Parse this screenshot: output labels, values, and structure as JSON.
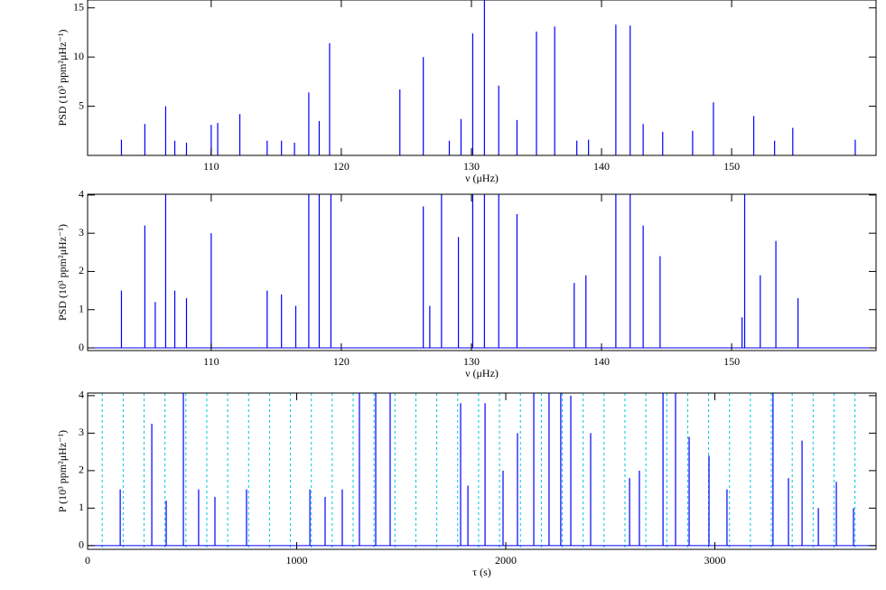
{
  "chart_data": [
    {
      "type": "spectrum",
      "xlabel": "ν (μHz)",
      "ylabel": "PSD (10³ ppm²μHz⁻¹)",
      "color": "#0000ff",
      "xlim": [
        100.5,
        161.1
      ],
      "ylim": [
        0,
        15.8
      ],
      "xticks": [
        110,
        120,
        130,
        140,
        150
      ],
      "yticks": [
        5,
        10,
        15
      ],
      "x": [
        103.1,
        104.9,
        106.5,
        107.2,
        108.1,
        110.0,
        110.5,
        112.2,
        114.3,
        115.4,
        116.4,
        117.5,
        118.3,
        119.1,
        124.5,
        126.3,
        128.3,
        129.2,
        130.1,
        131.0,
        132.1,
        133.5,
        135.0,
        136.4,
        138.1,
        139.0,
        141.1,
        142.2,
        143.2,
        144.7,
        147.0,
        148.6,
        151.7,
        153.3,
        154.7,
        159.5
      ],
      "values": [
        1.6,
        3.2,
        5.0,
        1.5,
        1.3,
        3.1,
        3.3,
        4.2,
        1.5,
        1.5,
        1.3,
        6.4,
        3.5,
        11.4,
        6.7,
        10.0,
        1.5,
        3.7,
        12.4,
        16.5,
        7.1,
        3.6,
        12.6,
        13.1,
        1.5,
        1.6,
        13.3,
        13.2,
        3.2,
        2.4,
        2.5,
        5.4,
        4.0,
        1.5,
        2.8,
        1.6
      ]
    },
    {
      "type": "spectrum",
      "xlabel": "ν (μHz)",
      "ylabel": "PSD (10³ ppm²μHz⁻¹)",
      "color": "#0000ff",
      "xlim": [
        100.5,
        161.1
      ],
      "ylim": [
        -0.07,
        4.02
      ],
      "xticks": [
        110,
        120,
        130,
        140,
        150
      ],
      "yticks": [
        0,
        1,
        2,
        3,
        4
      ],
      "x": [
        103.1,
        104.9,
        105.7,
        106.5,
        107.2,
        108.1,
        110.0,
        114.3,
        115.4,
        116.5,
        117.5,
        118.3,
        119.2,
        126.3,
        126.8,
        127.7,
        129.0,
        130.1,
        131.0,
        132.1,
        133.5,
        137.9,
        138.8,
        141.1,
        142.2,
        143.2,
        144.5,
        150.8,
        151.0,
        152.2,
        153.4,
        155.1
      ],
      "values": [
        1.5,
        3.2,
        1.2,
        4.5,
        1.5,
        1.3,
        3.0,
        1.5,
        1.4,
        1.1,
        4.5,
        4.5,
        4.5,
        3.7,
        1.1,
        4.5,
        2.9,
        4.5,
        4.5,
        4.5,
        3.5,
        1.7,
        1.9,
        4.5,
        4.5,
        3.2,
        2.4,
        0.8,
        4.5,
        1.9,
        2.8,
        1.3
      ]
    },
    {
      "type": "spectrum",
      "xlabel": "τ (s)",
      "ylabel": "P (10³ ppm²μHz⁻¹)",
      "color": "#0000ff",
      "xlim": [
        0,
        3771
      ],
      "ylim": [
        -0.1,
        4.07
      ],
      "xticks": [
        0,
        1000,
        2000,
        3000
      ],
      "yticks": [
        0,
        1,
        2,
        3,
        4
      ],
      "vlines": [
        70,
        170,
        270,
        370,
        470,
        570,
        670,
        770,
        870,
        970,
        1070,
        1170,
        1270,
        1370,
        1470,
        1570,
        1670,
        1770,
        1870,
        1970,
        2070,
        2170,
        2270,
        2370,
        2470,
        2570,
        2670,
        2770,
        2870,
        2970,
        3070,
        3170,
        3270,
        3370,
        3470,
        3570,
        3670
      ],
      "vline_color": "#00c8e0",
      "x": [
        156,
        307,
        376,
        458,
        531,
        609,
        760,
        1063,
        1136,
        1218,
        1300,
        1378,
        1447,
        1784,
        1819,
        1901,
        1987,
        2056,
        2134,
        2207,
        2263,
        2311,
        2406,
        2592,
        2639,
        2752,
        2812,
        2877,
        2972,
        3058,
        3278,
        3352,
        3417,
        3495,
        3581,
        3663
      ],
      "values": [
        1.5,
        3.25,
        1.2,
        4.5,
        1.5,
        1.3,
        1.5,
        1.5,
        1.3,
        1.5,
        4.5,
        4.5,
        4.5,
        3.8,
        1.6,
        3.8,
        2.0,
        3.0,
        4.5,
        4.5,
        4.5,
        4.0,
        3.0,
        1.8,
        2.0,
        4.5,
        4.5,
        2.9,
        2.4,
        1.5,
        4.5,
        1.8,
        2.8,
        1.0,
        1.7,
        1.0
      ]
    }
  ]
}
